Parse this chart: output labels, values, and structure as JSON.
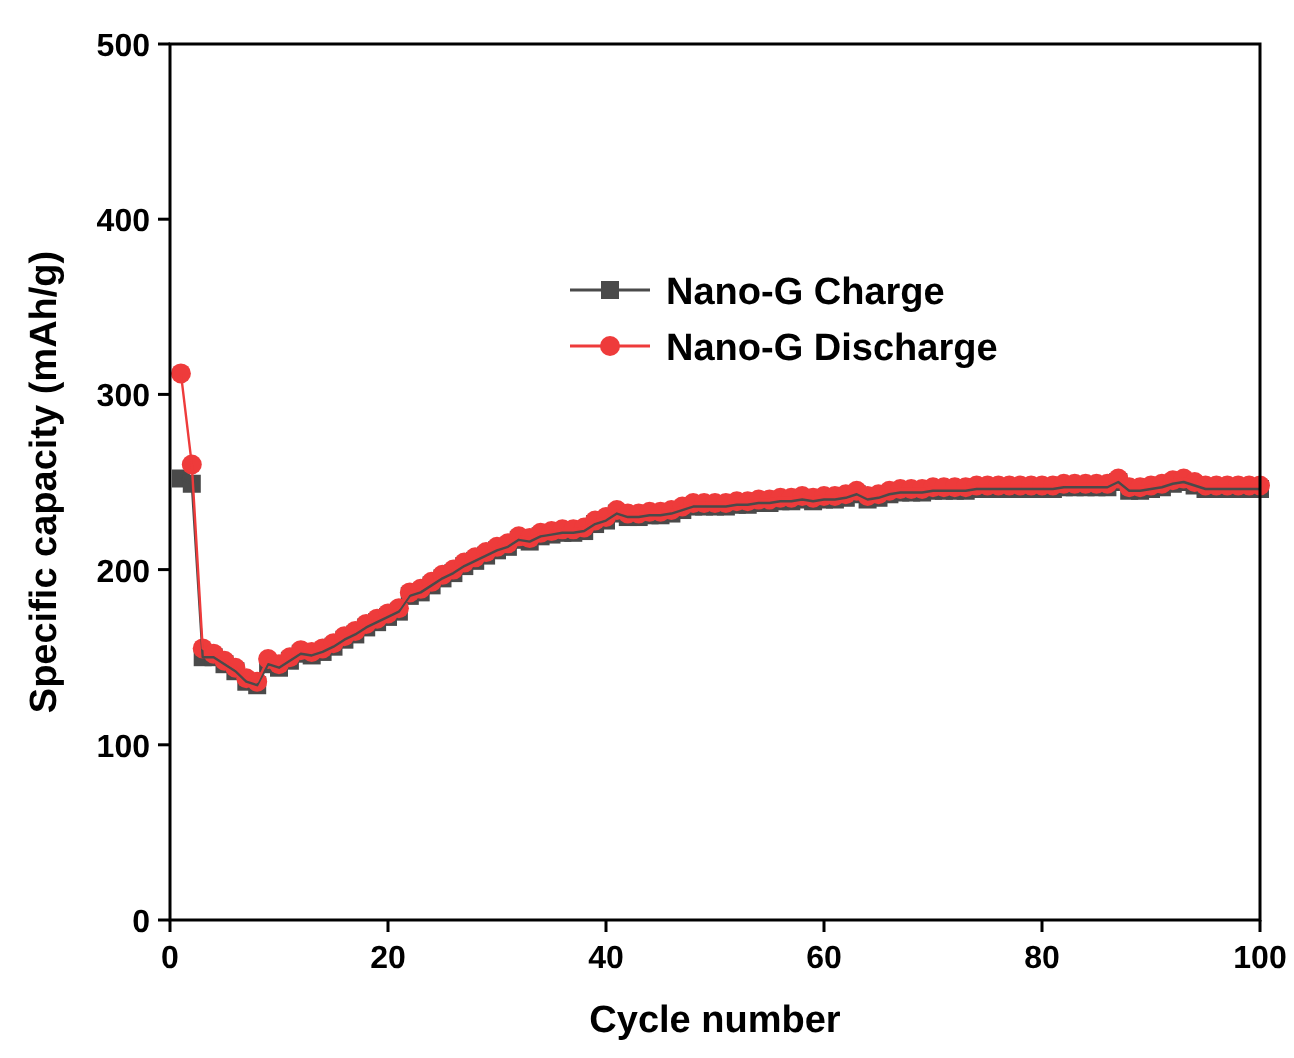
{
  "chart_data": {
    "type": "line",
    "xlabel": "Cycle number",
    "ylabel": "Specific capacity (mAh/g)",
    "xlim": [
      0,
      100
    ],
    "ylim": [
      0,
      500
    ],
    "xticks": [
      0,
      20,
      40,
      60,
      80,
      100
    ],
    "yticks": [
      0,
      100,
      200,
      300,
      400,
      500
    ],
    "legend": "top right",
    "grid": false,
    "x": [
      1,
      2,
      3,
      4,
      5,
      6,
      7,
      8,
      9,
      10,
      11,
      12,
      13,
      14,
      15,
      16,
      17,
      18,
      19,
      20,
      21,
      22,
      23,
      24,
      25,
      26,
      27,
      28,
      29,
      30,
      31,
      32,
      33,
      34,
      35,
      36,
      37,
      38,
      39,
      40,
      41,
      42,
      43,
      44,
      45,
      46,
      47,
      48,
      49,
      50,
      51,
      52,
      53,
      54,
      55,
      56,
      57,
      58,
      59,
      60,
      61,
      62,
      63,
      64,
      65,
      66,
      67,
      68,
      69,
      70,
      71,
      72,
      73,
      74,
      75,
      76,
      77,
      78,
      79,
      80,
      81,
      82,
      83,
      84,
      85,
      86,
      87,
      88,
      89,
      90,
      91,
      92,
      93,
      94,
      95,
      96,
      97,
      98,
      99,
      100
    ],
    "series": [
      {
        "name": "Nano-G Charge",
        "color": "#4a4a4a",
        "marker": "square",
        "values": [
          252,
          249,
          150,
          150,
          146,
          142,
          136,
          134,
          146,
          144,
          148,
          152,
          151,
          153,
          156,
          160,
          163,
          167,
          170,
          173,
          176,
          185,
          187,
          191,
          195,
          198,
          202,
          205,
          208,
          211,
          213,
          217,
          216,
          219,
          220,
          221,
          221,
          222,
          226,
          228,
          232,
          230,
          230,
          231,
          231,
          232,
          234,
          236,
          236,
          236,
          236,
          237,
          237,
          238,
          238,
          239,
          239,
          240,
          239,
          240,
          240,
          241,
          243,
          240,
          241,
          243,
          244,
          244,
          244,
          245,
          245,
          245,
          245,
          246,
          246,
          246,
          246,
          246,
          246,
          246,
          246,
          247,
          247,
          247,
          247,
          247,
          250,
          245,
          245,
          246,
          247,
          249,
          250,
          248,
          246,
          246,
          246,
          246,
          246,
          246
        ]
      },
      {
        "name": "Nano-G Discharge",
        "color": "#ee3b3b",
        "marker": "circle",
        "values": [
          312,
          260,
          155,
          152,
          148,
          144,
          138,
          136,
          149,
          146,
          150,
          154,
          153,
          155,
          158,
          162,
          165,
          169,
          172,
          175,
          178,
          187,
          189,
          193,
          197,
          200,
          204,
          207,
          210,
          213,
          215,
          219,
          218,
          221,
          222,
          223,
          223,
          224,
          228,
          230,
          234,
          232,
          232,
          233,
          233,
          234,
          236,
          238,
          238,
          238,
          238,
          239,
          239,
          240,
          240,
          241,
          241,
          242,
          241,
          242,
          242,
          243,
          245,
          242,
          243,
          245,
          246,
          246,
          246,
          247,
          247,
          247,
          247,
          248,
          248,
          248,
          248,
          248,
          248,
          248,
          248,
          249,
          249,
          249,
          249,
          249,
          252,
          247,
          247,
          248,
          249,
          251,
          252,
          250,
          248,
          248,
          248,
          248,
          248,
          248
        ]
      }
    ]
  }
}
